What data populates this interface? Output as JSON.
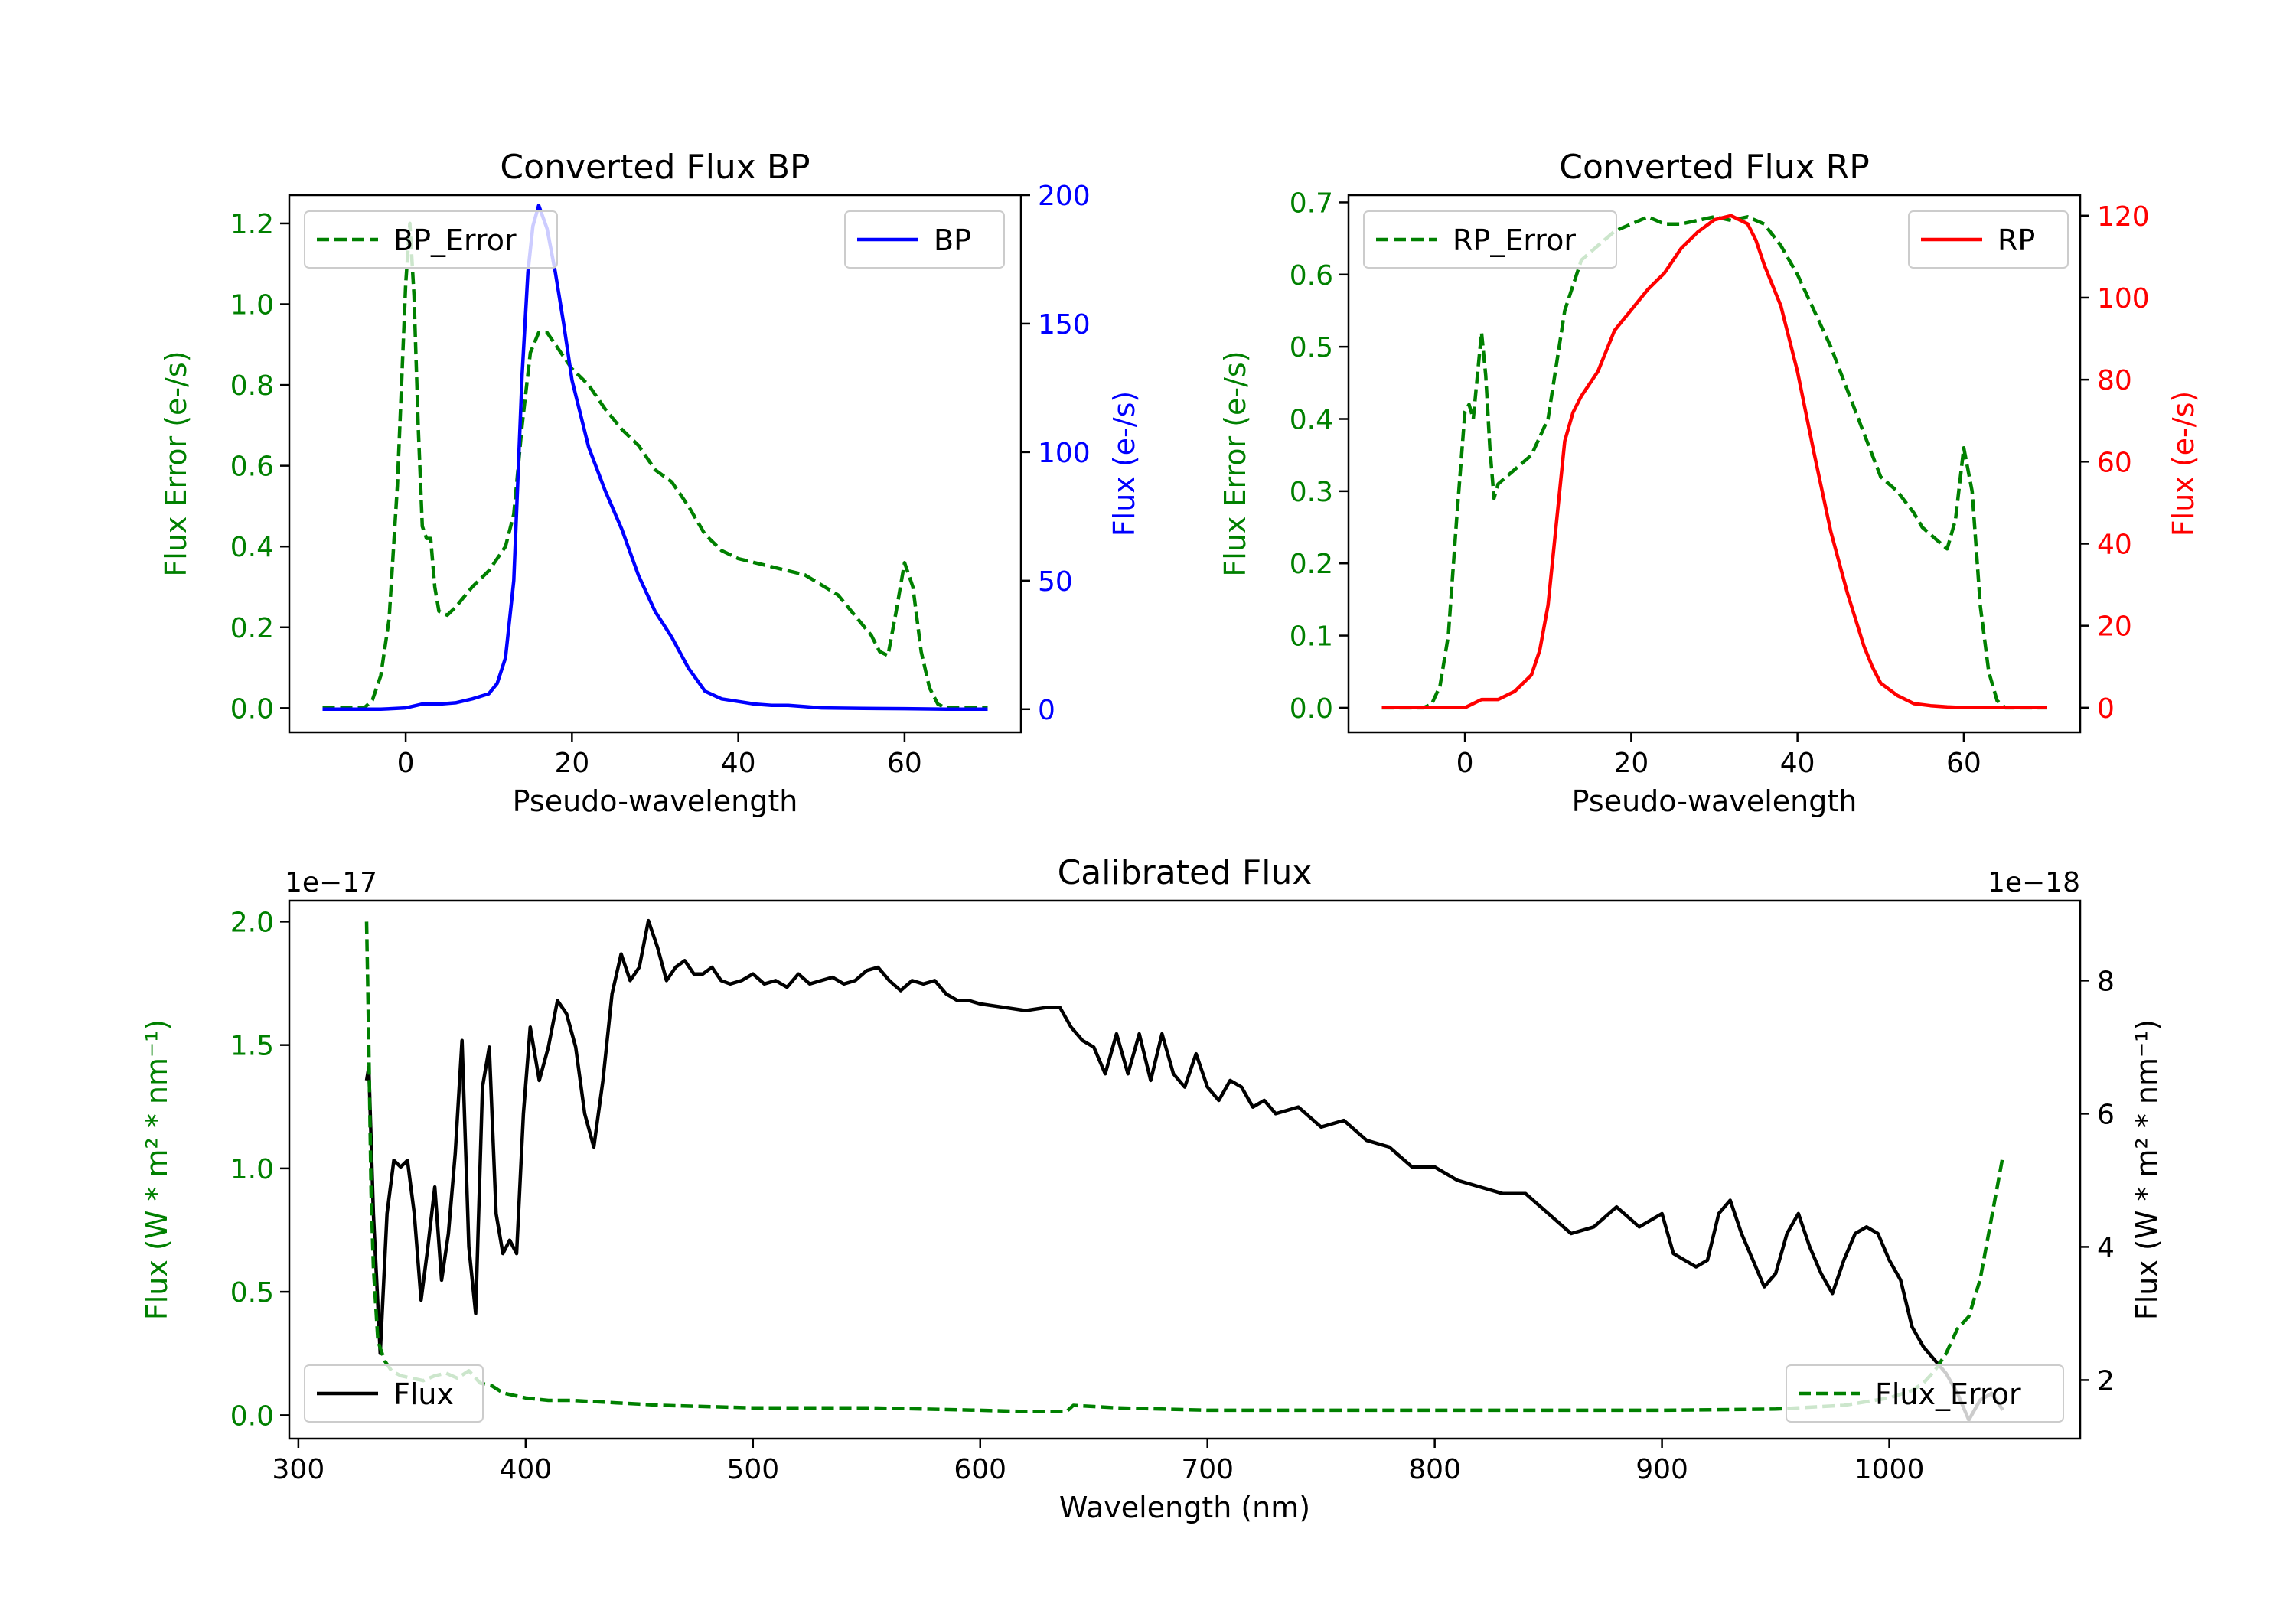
{
  "colors": {
    "error": "#008000",
    "bp": "#0000ff",
    "rp": "#ff0000",
    "flux": "#000000"
  },
  "chart_data": [
    {
      "type": "line",
      "title": "Converted Flux BP",
      "xlabel": "Pseudo-wavelength",
      "xlim": [
        -14,
        74
      ],
      "xticks": [
        0,
        20,
        40,
        60
      ],
      "left_axis": {
        "label": "Flux Error (e-/s)",
        "lim": [
          -0.06,
          1.27
        ],
        "ticks": [
          0.0,
          0.2,
          0.4,
          0.6,
          0.8,
          1.0,
          1.2
        ],
        "color": "#008000"
      },
      "right_axis": {
        "label": "Flux (e-/s)",
        "lim": [
          -9,
          200
        ],
        "ticks": [
          0,
          50,
          100,
          150,
          200
        ],
        "color": "#0000ff"
      },
      "series": [
        {
          "name": "BP_Error",
          "axis": "left",
          "style": "dashed",
          "color": "#008000",
          "legend": "top-left",
          "x": [
            -10,
            -5,
            -4,
            -3,
            -2,
            -1,
            0,
            0.5,
            1,
            1.5,
            2,
            2.5,
            3,
            3.5,
            4,
            5,
            6,
            8,
            10,
            12,
            13,
            14,
            15,
            16,
            17,
            18,
            20,
            22,
            24,
            26,
            28,
            30,
            32,
            34,
            36,
            38,
            40,
            44,
            48,
            52,
            54,
            56,
            57,
            58,
            59,
            60,
            61,
            62,
            63,
            64,
            65,
            70
          ],
          "y": [
            0,
            0,
            0.02,
            0.08,
            0.22,
            0.55,
            1.05,
            1.2,
            1.02,
            0.7,
            0.45,
            0.42,
            0.42,
            0.3,
            0.24,
            0.23,
            0.25,
            0.3,
            0.34,
            0.4,
            0.48,
            0.7,
            0.88,
            0.93,
            0.93,
            0.9,
            0.84,
            0.8,
            0.74,
            0.69,
            0.65,
            0.59,
            0.56,
            0.5,
            0.43,
            0.39,
            0.37,
            0.35,
            0.33,
            0.28,
            0.23,
            0.18,
            0.14,
            0.13,
            0.24,
            0.36,
            0.3,
            0.14,
            0.05,
            0.01,
            0,
            0
          ]
        },
        {
          "name": "BP",
          "axis": "right",
          "style": "solid",
          "color": "#0000ff",
          "legend": "top-right",
          "x": [
            -10,
            -3,
            0,
            2,
            4,
            6,
            8,
            10,
            11,
            12,
            13,
            14,
            14.7,
            15.3,
            16,
            17,
            18,
            19,
            20,
            22,
            24,
            26,
            28,
            30,
            31,
            32,
            34,
            36,
            38,
            40,
            42,
            44,
            46,
            48,
            50,
            55,
            60,
            65,
            70
          ],
          "y": [
            0,
            0,
            0.5,
            2,
            2,
            2.5,
            4,
            6,
            10,
            20,
            50,
            130,
            170,
            188,
            196,
            187,
            170,
            150,
            128,
            102,
            85,
            70,
            52,
            38,
            33,
            28,
            16,
            7,
            4,
            3,
            2,
            1.5,
            1.5,
            1,
            0.5,
            0.3,
            0.2,
            0,
            0
          ]
        }
      ]
    },
    {
      "type": "line",
      "title": "Converted Flux RP",
      "xlabel": "Pseudo-wavelength",
      "xlim": [
        -14,
        74
      ],
      "xticks": [
        0,
        20,
        40,
        60
      ],
      "left_axis": {
        "label": "Flux Error (e-/s)",
        "lim": [
          -0.034,
          0.71
        ],
        "ticks": [
          0.0,
          0.1,
          0.2,
          0.3,
          0.4,
          0.5,
          0.6,
          0.7
        ],
        "color": "#008000"
      },
      "right_axis": {
        "label": "Flux (e-/s)",
        "lim": [
          -6,
          125
        ],
        "ticks": [
          0,
          20,
          40,
          60,
          80,
          100,
          120
        ],
        "color": "#ff0000"
      },
      "series": [
        {
          "name": "RP_Error",
          "axis": "left",
          "style": "dashed",
          "color": "#008000",
          "legend": "top-left",
          "x": [
            -10,
            -5,
            -4,
            -3,
            -2,
            -1,
            0,
            0.5,
            1,
            1.5,
            2,
            2.5,
            3,
            3.5,
            4,
            5,
            6,
            8,
            10,
            12,
            14,
            16,
            18,
            20,
            22,
            24,
            26,
            28,
            30,
            32,
            34,
            36,
            38,
            40,
            42,
            44,
            46,
            48,
            50,
            52,
            54,
            55,
            56,
            57,
            58,
            59,
            60,
            61,
            62,
            63,
            64,
            65,
            70
          ],
          "y": [
            0,
            0,
            0.005,
            0.03,
            0.1,
            0.26,
            0.41,
            0.42,
            0.4,
            0.46,
            0.52,
            0.46,
            0.36,
            0.29,
            0.31,
            0.32,
            0.33,
            0.35,
            0.4,
            0.55,
            0.62,
            0.64,
            0.66,
            0.67,
            0.68,
            0.67,
            0.67,
            0.675,
            0.68,
            0.675,
            0.68,
            0.67,
            0.64,
            0.6,
            0.55,
            0.5,
            0.44,
            0.38,
            0.32,
            0.3,
            0.27,
            0.25,
            0.24,
            0.23,
            0.22,
            0.26,
            0.36,
            0.3,
            0.14,
            0.05,
            0.01,
            0,
            0
          ]
        },
        {
          "name": "RP",
          "axis": "right",
          "style": "solid",
          "color": "#ff0000",
          "legend": "top-right",
          "x": [
            -10,
            -5,
            0,
            2,
            4,
            6,
            8,
            9,
            10,
            11,
            12,
            13,
            14,
            16,
            18,
            20,
            22,
            24,
            26,
            28,
            30,
            32,
            34,
            35,
            36,
            38,
            40,
            42,
            44,
            46,
            48,
            49,
            50,
            52,
            54,
            56,
            58,
            60,
            65,
            70
          ],
          "y": [
            0,
            0,
            0,
            2,
            2,
            4,
            8,
            14,
            25,
            45,
            65,
            72,
            76,
            82,
            92,
            97,
            102,
            106,
            112,
            116,
            119,
            120,
            118,
            114,
            108,
            98,
            82,
            62,
            43,
            28,
            15,
            10,
            6,
            3,
            1,
            0.5,
            0.2,
            0,
            0,
            0
          ]
        }
      ]
    },
    {
      "type": "line",
      "title": "Calibrated Flux",
      "xlabel": "Wavelength (nm)",
      "xlim": [
        296,
        1084
      ],
      "xticks": [
        300,
        400,
        500,
        600,
        700,
        800,
        900,
        1000
      ],
      "left_axis": {
        "label": "Flux (W * m² * nm⁻¹)",
        "offset_text": "1e−17",
        "lim": [
          -0.095,
          2.085
        ],
        "ticks": [
          0.0,
          0.5,
          1.0,
          1.5,
          2.0
        ],
        "tick_labels": [
          "0.0",
          "0.5",
          "1.0",
          "1.5",
          "2.0"
        ],
        "color": "#008000"
      },
      "right_axis": {
        "label": "Flux (W * m² * nm⁻¹)",
        "offset_text": "1e−18",
        "lim": [
          1.12,
          9.2
        ],
        "ticks": [
          2,
          4,
          6,
          8
        ],
        "color": "#000000"
      },
      "series": [
        {
          "name": "Flux",
          "axis": "right",
          "style": "solid",
          "color": "#000000",
          "legend": "lower-left",
          "x": [
            330,
            331,
            333,
            336,
            339,
            342,
            345,
            348,
            351,
            354,
            357,
            360,
            363,
            366,
            369,
            372,
            375,
            378,
            381,
            384,
            387,
            390,
            393,
            396,
            399,
            402,
            406,
            410,
            414,
            418,
            422,
            426,
            430,
            434,
            438,
            442,
            446,
            450,
            454,
            458,
            462,
            466,
            470,
            474,
            478,
            482,
            486,
            490,
            495,
            500,
            505,
            510,
            515,
            520,
            525,
            530,
            535,
            540,
            545,
            550,
            555,
            560,
            565,
            570,
            575,
            580,
            585,
            590,
            595,
            600,
            610,
            620,
            630,
            635,
            640,
            645,
            650,
            655,
            660,
            665,
            670,
            675,
            680,
            685,
            690,
            695,
            700,
            705,
            710,
            715,
            720,
            725,
            730,
            740,
            750,
            760,
            770,
            780,
            790,
            800,
            810,
            820,
            830,
            840,
            850,
            860,
            870,
            880,
            890,
            900,
            905,
            910,
            915,
            920,
            925,
            930,
            935,
            940,
            945,
            950,
            955,
            960,
            965,
            970,
            975,
            980,
            985,
            990,
            995,
            1000,
            1005,
            1010,
            1015,
            1020,
            1025,
            1030,
            1035,
            1040,
            1045,
            1050
          ],
          "y": [
            6.5,
            6.7,
            4.5,
            2.4,
            4.5,
            5.3,
            5.2,
            5.3,
            4.5,
            3.2,
            4.0,
            4.9,
            3.5,
            4.2,
            5.4,
            7.1,
            4.0,
            3.0,
            6.4,
            7.0,
            4.5,
            3.9,
            4.1,
            3.9,
            6.0,
            7.3,
            6.5,
            7.0,
            7.7,
            7.5,
            7.0,
            6.0,
            5.5,
            6.5,
            7.8,
            8.4,
            8.0,
            8.2,
            8.9,
            8.5,
            8.0,
            8.2,
            8.3,
            8.1,
            8.1,
            8.2,
            8.0,
            7.95,
            8.0,
            8.1,
            7.95,
            8.0,
            7.9,
            8.1,
            7.95,
            8.0,
            8.05,
            7.95,
            8.0,
            8.15,
            8.2,
            8.0,
            7.85,
            8.0,
            7.95,
            8.0,
            7.8,
            7.7,
            7.7,
            7.65,
            7.6,
            7.55,
            7.6,
            7.6,
            7.3,
            7.1,
            7.0,
            6.6,
            7.2,
            6.6,
            7.2,
            6.5,
            7.2,
            6.6,
            6.4,
            6.9,
            6.4,
            6.2,
            6.5,
            6.4,
            6.1,
            6.2,
            6.0,
            6.1,
            5.8,
            5.9,
            5.6,
            5.5,
            5.2,
            5.2,
            5.0,
            4.9,
            4.8,
            4.8,
            4.5,
            4.2,
            4.3,
            4.6,
            4.3,
            4.5,
            3.9,
            3.8,
            3.7,
            3.8,
            4.5,
            4.7,
            4.2,
            3.8,
            3.4,
            3.6,
            4.2,
            4.5,
            4.0,
            3.6,
            3.3,
            3.8,
            4.2,
            4.3,
            4.2,
            3.8,
            3.5,
            2.8,
            2.5,
            2.3,
            2.1,
            1.8,
            1.4,
            1.7,
            1.8,
            1.55
          ]
        },
        {
          "name": "Flux_Error",
          "axis": "left",
          "style": "dashed",
          "color": "#008000",
          "legend": "lower-right",
          "x": [
            330,
            331,
            332,
            333,
            335,
            338,
            341,
            345,
            350,
            355,
            360,
            365,
            370,
            375,
            380,
            385,
            390,
            395,
            400,
            410,
            420,
            440,
            460,
            500,
            550,
            600,
            620,
            638,
            641,
            660,
            700,
            800,
            900,
            950,
            980,
            1000,
            1010,
            1015,
            1020,
            1025,
            1030,
            1035,
            1040,
            1045,
            1050
          ],
          "y": [
            2.0,
            1.5,
            0.9,
            0.6,
            0.3,
            0.22,
            0.18,
            0.16,
            0.15,
            0.14,
            0.16,
            0.17,
            0.15,
            0.18,
            0.13,
            0.12,
            0.09,
            0.08,
            0.07,
            0.06,
            0.06,
            0.05,
            0.04,
            0.03,
            0.03,
            0.02,
            0.015,
            0.015,
            0.04,
            0.03,
            0.02,
            0.02,
            0.02,
            0.025,
            0.04,
            0.07,
            0.1,
            0.13,
            0.18,
            0.25,
            0.35,
            0.4,
            0.55,
            0.8,
            1.05
          ]
        }
      ]
    }
  ]
}
